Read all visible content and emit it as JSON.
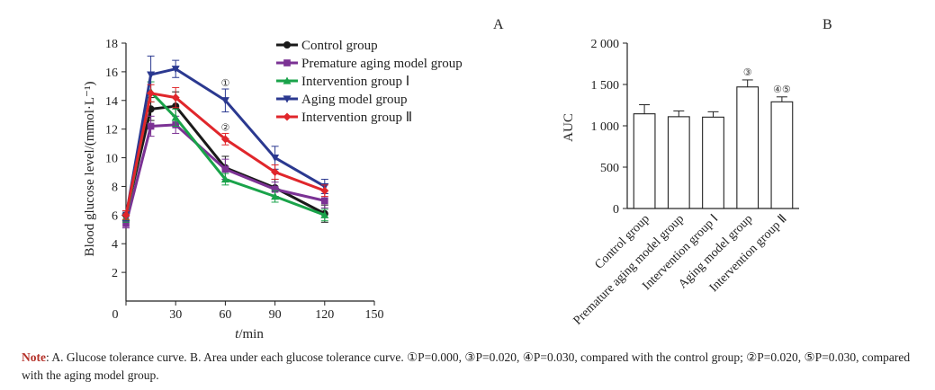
{
  "chart_data": [
    {
      "type": "line",
      "panel_label": "A",
      "xlabel_italic": "t",
      "xlabel_rest": "/min",
      "ylabel": "Blood glucose level/(mmol·L⁻¹)",
      "xlim": [
        0,
        150
      ],
      "ylim": [
        0,
        18
      ],
      "xticks": [
        0,
        30,
        60,
        90,
        120,
        150
      ],
      "yticks": [
        2,
        4,
        6,
        8,
        10,
        12,
        14,
        16,
        18
      ],
      "x": [
        0,
        15,
        30,
        60,
        90,
        120
      ],
      "series": [
        {
          "name": "Control group",
          "color": "#1a1a1a",
          "marker": "circle",
          "values": [
            6.0,
            13.4,
            13.6,
            9.3,
            7.9,
            6.1
          ],
          "err": [
            0.3,
            0.8,
            1.0,
            0.8,
            0.6,
            0.6
          ]
        },
        {
          "name": "Premature aging model group",
          "color": "#7b3294",
          "marker": "square",
          "values": [
            5.4,
            12.2,
            12.3,
            9.2,
            7.8,
            7.0
          ],
          "err": [
            0.3,
            0.7,
            0.6,
            0.7,
            0.5,
            0.5
          ]
        },
        {
          "name": "Intervention group Ⅰ",
          "color": "#1aa34a",
          "marker": "triangle-up",
          "values": [
            5.8,
            14.6,
            12.8,
            8.5,
            7.3,
            6.0
          ],
          "err": [
            0.3,
            0.7,
            0.6,
            0.4,
            0.4,
            0.4
          ]
        },
        {
          "name": "Aging model group",
          "color": "#2b3990",
          "marker": "triangle-down",
          "values": [
            5.9,
            15.8,
            16.2,
            14.0,
            10.0,
            8.0
          ],
          "err": [
            0.3,
            1.3,
            0.6,
            0.8,
            0.8,
            0.5
          ]
        },
        {
          "name": "Intervention group Ⅱ",
          "color": "#e0262b",
          "marker": "diamond",
          "values": [
            6.0,
            14.5,
            14.2,
            11.3,
            9.0,
            7.7
          ],
          "err": [
            0.3,
            0.6,
            0.7,
            0.4,
            0.5,
            0.4
          ]
        }
      ],
      "annotations": [
        {
          "text": "①",
          "x": 60,
          "y": 15.0
        },
        {
          "text": "②",
          "x": 60,
          "y": 11.9
        }
      ]
    },
    {
      "type": "bar",
      "panel_label": "B",
      "ylabel": "AUC",
      "ylim": [
        0,
        2000
      ],
      "yticks": [
        0,
        500,
        1000,
        1500,
        2000
      ],
      "ytick_labels": [
        "0",
        "500",
        "1 000",
        "1 500",
        "2 000"
      ],
      "categories": [
        "Control group",
        "Premature aging model group",
        "Intervention group Ⅰ",
        "Aging model group",
        "Intervention group Ⅱ"
      ],
      "values": [
        1145,
        1110,
        1105,
        1470,
        1290
      ],
      "err": [
        110,
        70,
        65,
        85,
        60
      ],
      "bar_labels": [
        "",
        "",
        "",
        "③",
        "④⑤"
      ]
    }
  ],
  "note": {
    "label": "Note",
    "text": ": A. Glucose tolerance curve. B. Area under each glucose tolerance curve. ①P=0.000, ③P=0.020, ④P=0.030, compared with the control group; ②P=0.020, ⑤P=0.030, compared with the aging model group."
  }
}
